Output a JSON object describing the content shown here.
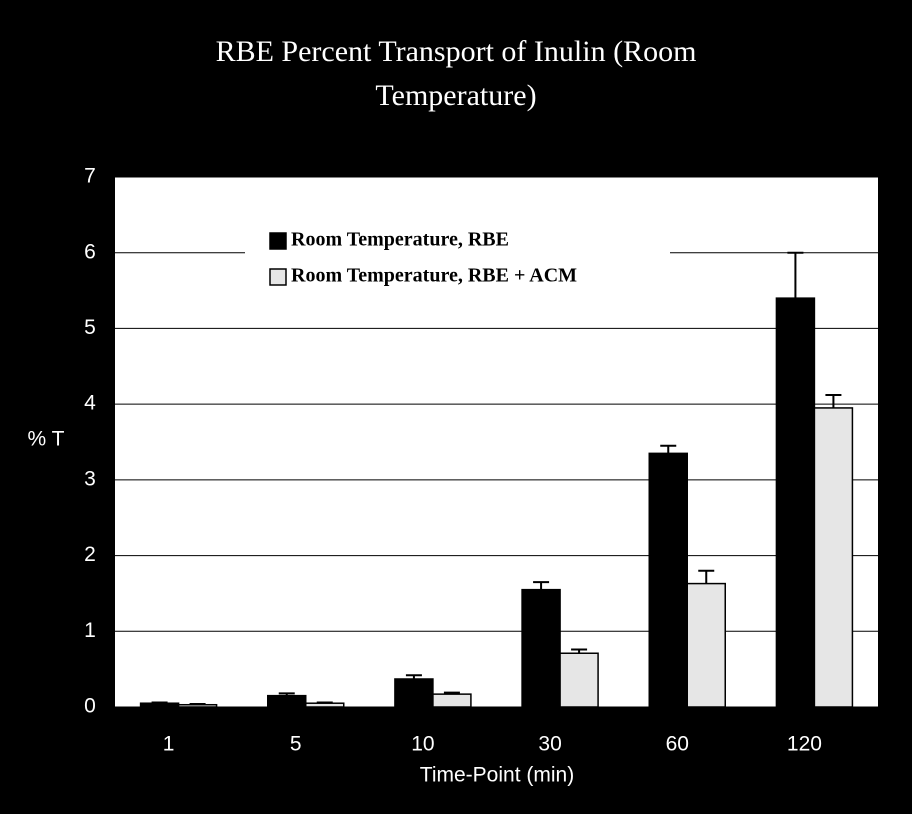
{
  "chart_data": {
    "type": "bar",
    "title": "RBE Percent Transport of Inulin (Room Temperature)",
    "xlabel": "Time-Point (min)",
    "ylabel": "% T",
    "categories": [
      "1",
      "5",
      "10",
      "30",
      "60",
      "120"
    ],
    "series": [
      {
        "name": "Room Temperature, RBE",
        "color": "#000000",
        "values": [
          0.05,
          0.15,
          0.37,
          1.55,
          3.35,
          5.4
        ],
        "errors": [
          0.01,
          0.03,
          0.05,
          0.1,
          0.1,
          0.6
        ]
      },
      {
        "name": "Room Temperature, RBE + ACM",
        "color": "#e6e6e6",
        "values": [
          0.03,
          0.05,
          0.17,
          0.71,
          1.63,
          3.95
        ],
        "errors": [
          0.01,
          0.01,
          0.02,
          0.05,
          0.17,
          0.17
        ]
      }
    ],
    "ylim": [
      0,
      7
    ],
    "yticks": [
      0,
      1,
      2,
      3,
      4,
      5,
      6,
      7
    ],
    "grid": true,
    "legend": "top"
  }
}
